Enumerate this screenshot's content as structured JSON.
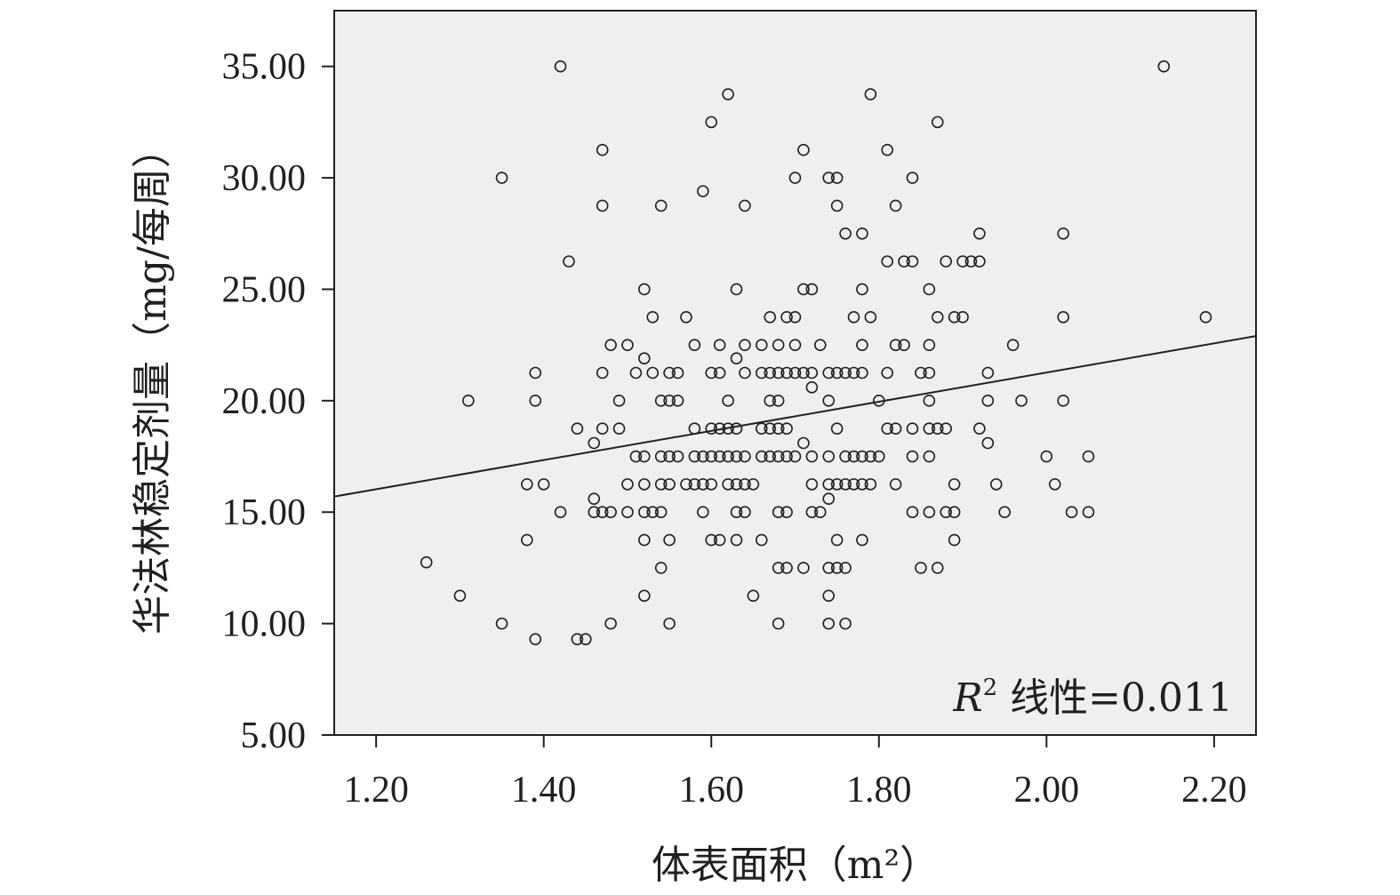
{
  "chart_data": {
    "type": "scatter",
    "xlabel": "体表面积（m²）",
    "ylabel": "华法林稳定剂量（mg/每周）",
    "xlim": [
      1.15,
      2.25
    ],
    "ylim": [
      5.0,
      37.5
    ],
    "xticks": [
      "1.20",
      "1.40",
      "1.60",
      "1.80",
      "2.00",
      "2.20"
    ],
    "yticks": [
      "5.00",
      "10.00",
      "15.00",
      "20.00",
      "25.00",
      "30.00",
      "35.00"
    ],
    "grid": false,
    "annotation": {
      "symbol": "R",
      "superscript": "2",
      "text": " 线性=0.011"
    },
    "fit_line": {
      "x": [
        1.15,
        2.25
      ],
      "y": [
        15.7,
        22.9
      ]
    },
    "series": [
      {
        "points": [
          [
            1.42,
            35.0
          ],
          [
            2.14,
            35.0
          ],
          [
            1.62,
            33.75
          ],
          [
            1.79,
            33.75
          ],
          [
            1.6,
            32.5
          ],
          [
            1.87,
            32.5
          ],
          [
            1.47,
            31.25
          ],
          [
            1.71,
            31.25
          ],
          [
            1.81,
            31.25
          ],
          [
            1.35,
            30.0
          ],
          [
            1.7,
            30.0
          ],
          [
            1.74,
            30.0
          ],
          [
            1.75,
            30.0
          ],
          [
            1.84,
            30.0
          ],
          [
            1.59,
            29.4
          ],
          [
            1.47,
            28.75
          ],
          [
            1.54,
            28.75
          ],
          [
            1.64,
            28.75
          ],
          [
            1.75,
            28.75
          ],
          [
            1.82,
            28.75
          ],
          [
            1.76,
            27.5
          ],
          [
            1.78,
            27.5
          ],
          [
            1.92,
            27.5
          ],
          [
            2.02,
            27.5
          ],
          [
            1.43,
            26.25
          ],
          [
            1.81,
            26.25
          ],
          [
            1.83,
            26.25
          ],
          [
            1.84,
            26.25
          ],
          [
            1.88,
            26.25
          ],
          [
            1.9,
            26.25
          ],
          [
            1.91,
            26.25
          ],
          [
            1.92,
            26.25
          ],
          [
            1.52,
            25.0
          ],
          [
            1.63,
            25.0
          ],
          [
            1.71,
            25.0
          ],
          [
            1.72,
            25.0
          ],
          [
            1.78,
            25.0
          ],
          [
            1.86,
            25.0
          ],
          [
            1.53,
            23.75
          ],
          [
            1.57,
            23.75
          ],
          [
            1.67,
            23.75
          ],
          [
            1.69,
            23.75
          ],
          [
            1.7,
            23.75
          ],
          [
            1.77,
            23.75
          ],
          [
            1.79,
            23.75
          ],
          [
            1.87,
            23.75
          ],
          [
            1.89,
            23.75
          ],
          [
            1.9,
            23.75
          ],
          [
            2.02,
            23.75
          ],
          [
            2.19,
            23.75
          ],
          [
            1.48,
            22.5
          ],
          [
            1.5,
            22.5
          ],
          [
            1.58,
            22.5
          ],
          [
            1.61,
            22.5
          ],
          [
            1.64,
            22.5
          ],
          [
            1.66,
            22.5
          ],
          [
            1.68,
            22.5
          ],
          [
            1.7,
            22.5
          ],
          [
            1.73,
            22.5
          ],
          [
            1.78,
            22.5
          ],
          [
            1.82,
            22.5
          ],
          [
            1.83,
            22.5
          ],
          [
            1.86,
            22.5
          ],
          [
            1.96,
            22.5
          ],
          [
            1.52,
            21.9
          ],
          [
            1.63,
            21.9
          ],
          [
            1.39,
            21.25
          ],
          [
            1.47,
            21.25
          ],
          [
            1.51,
            21.25
          ],
          [
            1.53,
            21.25
          ],
          [
            1.55,
            21.25
          ],
          [
            1.56,
            21.25
          ],
          [
            1.6,
            21.25
          ],
          [
            1.61,
            21.25
          ],
          [
            1.64,
            21.25
          ],
          [
            1.66,
            21.25
          ],
          [
            1.67,
            21.25
          ],
          [
            1.68,
            21.25
          ],
          [
            1.69,
            21.25
          ],
          [
            1.7,
            21.25
          ],
          [
            1.71,
            21.25
          ],
          [
            1.72,
            21.25
          ],
          [
            1.74,
            21.25
          ],
          [
            1.75,
            21.25
          ],
          [
            1.76,
            21.25
          ],
          [
            1.77,
            21.25
          ],
          [
            1.78,
            21.25
          ],
          [
            1.81,
            21.25
          ],
          [
            1.85,
            21.25
          ],
          [
            1.86,
            21.25
          ],
          [
            1.93,
            21.25
          ],
          [
            1.72,
            20.6
          ],
          [
            1.31,
            20.0
          ],
          [
            1.39,
            20.0
          ],
          [
            1.49,
            20.0
          ],
          [
            1.54,
            20.0
          ],
          [
            1.55,
            20.0
          ],
          [
            1.56,
            20.0
          ],
          [
            1.62,
            20.0
          ],
          [
            1.67,
            20.0
          ],
          [
            1.68,
            20.0
          ],
          [
            1.74,
            20.0
          ],
          [
            1.8,
            20.0
          ],
          [
            1.86,
            20.0
          ],
          [
            1.93,
            20.0
          ],
          [
            1.97,
            20.0
          ],
          [
            2.02,
            20.0
          ],
          [
            1.44,
            18.75
          ],
          [
            1.47,
            18.75
          ],
          [
            1.49,
            18.75
          ],
          [
            1.58,
            18.75
          ],
          [
            1.6,
            18.75
          ],
          [
            1.61,
            18.75
          ],
          [
            1.62,
            18.75
          ],
          [
            1.63,
            18.75
          ],
          [
            1.66,
            18.75
          ],
          [
            1.67,
            18.75
          ],
          [
            1.68,
            18.75
          ],
          [
            1.69,
            18.75
          ],
          [
            1.75,
            18.75
          ],
          [
            1.81,
            18.75
          ],
          [
            1.82,
            18.75
          ],
          [
            1.84,
            18.75
          ],
          [
            1.86,
            18.75
          ],
          [
            1.87,
            18.75
          ],
          [
            1.88,
            18.75
          ],
          [
            1.92,
            18.75
          ],
          [
            1.46,
            18.1
          ],
          [
            1.71,
            18.1
          ],
          [
            1.93,
            18.1
          ],
          [
            1.51,
            17.5
          ],
          [
            1.52,
            17.5
          ],
          [
            1.54,
            17.5
          ],
          [
            1.55,
            17.5
          ],
          [
            1.56,
            17.5
          ],
          [
            1.58,
            17.5
          ],
          [
            1.59,
            17.5
          ],
          [
            1.6,
            17.5
          ],
          [
            1.61,
            17.5
          ],
          [
            1.62,
            17.5
          ],
          [
            1.63,
            17.5
          ],
          [
            1.64,
            17.5
          ],
          [
            1.66,
            17.5
          ],
          [
            1.67,
            17.5
          ],
          [
            1.68,
            17.5
          ],
          [
            1.69,
            17.5
          ],
          [
            1.7,
            17.5
          ],
          [
            1.72,
            17.5
          ],
          [
            1.74,
            17.5
          ],
          [
            1.76,
            17.5
          ],
          [
            1.77,
            17.5
          ],
          [
            1.78,
            17.5
          ],
          [
            1.79,
            17.5
          ],
          [
            1.8,
            17.5
          ],
          [
            1.84,
            17.5
          ],
          [
            1.86,
            17.5
          ],
          [
            2.0,
            17.5
          ],
          [
            2.05,
            17.5
          ],
          [
            1.38,
            16.25
          ],
          [
            1.4,
            16.25
          ],
          [
            1.5,
            16.25
          ],
          [
            1.52,
            16.25
          ],
          [
            1.54,
            16.25
          ],
          [
            1.55,
            16.25
          ],
          [
            1.57,
            16.25
          ],
          [
            1.58,
            16.25
          ],
          [
            1.59,
            16.25
          ],
          [
            1.6,
            16.25
          ],
          [
            1.62,
            16.25
          ],
          [
            1.63,
            16.25
          ],
          [
            1.64,
            16.25
          ],
          [
            1.65,
            16.25
          ],
          [
            1.72,
            16.25
          ],
          [
            1.74,
            16.25
          ],
          [
            1.75,
            16.25
          ],
          [
            1.76,
            16.25
          ],
          [
            1.77,
            16.25
          ],
          [
            1.78,
            16.25
          ],
          [
            1.79,
            16.25
          ],
          [
            1.82,
            16.25
          ],
          [
            1.89,
            16.25
          ],
          [
            1.94,
            16.25
          ],
          [
            2.01,
            16.25
          ],
          [
            1.46,
            15.6
          ],
          [
            1.74,
            15.6
          ],
          [
            1.42,
            15.0
          ],
          [
            1.46,
            15.0
          ],
          [
            1.47,
            15.0
          ],
          [
            1.48,
            15.0
          ],
          [
            1.5,
            15.0
          ],
          [
            1.52,
            15.0
          ],
          [
            1.53,
            15.0
          ],
          [
            1.54,
            15.0
          ],
          [
            1.59,
            15.0
          ],
          [
            1.63,
            15.0
          ],
          [
            1.64,
            15.0
          ],
          [
            1.68,
            15.0
          ],
          [
            1.69,
            15.0
          ],
          [
            1.72,
            15.0
          ],
          [
            1.73,
            15.0
          ],
          [
            1.84,
            15.0
          ],
          [
            1.86,
            15.0
          ],
          [
            1.88,
            15.0
          ],
          [
            1.89,
            15.0
          ],
          [
            1.95,
            15.0
          ],
          [
            2.03,
            15.0
          ],
          [
            2.05,
            15.0
          ],
          [
            1.38,
            13.75
          ],
          [
            1.52,
            13.75
          ],
          [
            1.55,
            13.75
          ],
          [
            1.6,
            13.75
          ],
          [
            1.61,
            13.75
          ],
          [
            1.63,
            13.75
          ],
          [
            1.66,
            13.75
          ],
          [
            1.75,
            13.75
          ],
          [
            1.78,
            13.75
          ],
          [
            1.89,
            13.75
          ],
          [
            1.26,
            12.75
          ],
          [
            1.54,
            12.5
          ],
          [
            1.68,
            12.5
          ],
          [
            1.69,
            12.5
          ],
          [
            1.71,
            12.5
          ],
          [
            1.74,
            12.5
          ],
          [
            1.75,
            12.5
          ],
          [
            1.76,
            12.5
          ],
          [
            1.85,
            12.5
          ],
          [
            1.87,
            12.5
          ],
          [
            1.3,
            11.25
          ],
          [
            1.52,
            11.25
          ],
          [
            1.65,
            11.25
          ],
          [
            1.74,
            11.25
          ],
          [
            1.35,
            10.0
          ],
          [
            1.48,
            10.0
          ],
          [
            1.55,
            10.0
          ],
          [
            1.68,
            10.0
          ],
          [
            1.74,
            10.0
          ],
          [
            1.76,
            10.0
          ],
          [
            1.39,
            9.3
          ],
          [
            1.44,
            9.3
          ],
          [
            1.45,
            9.3
          ]
        ]
      }
    ]
  }
}
